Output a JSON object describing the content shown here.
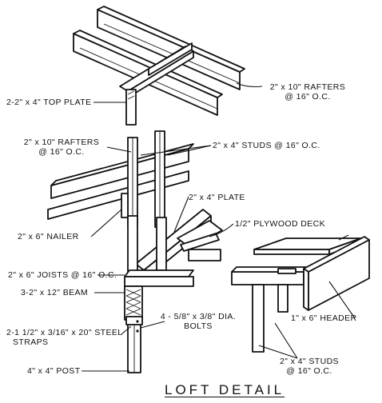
{
  "title": "LOFT DETAIL",
  "labels": {
    "top_plate": "2-2\" x 4\" TOP PLATE",
    "rafters_right_1": "2\" x 10\" RAFTERS",
    "rafters_right_2": "@ 16\" O.C.",
    "rafters_left_1": "2\" x 10\" RAFTERS",
    "rafters_left_2": "@ 16\" O.C.",
    "studs_upper": "2\" x 4\" STUDS @ 16\" O.C.",
    "plate": "2\" x 4\" PLATE",
    "plywood_deck": "1/2\" PLYWOOD DECK",
    "nailer": "2\" x 6\" NAILER",
    "joists": "2\" x 6\" JOISTS @ 16\" O.C.",
    "beam": "3-2\" x 12\" BEAM",
    "bolts_1": "4 - 5/8\" x 3/8\" DIA.",
    "bolts_2": "BOLTS",
    "straps_1": "2-1 1/2\" x 3/16\" x 20\" STEEL",
    "straps_2": "STRAPS",
    "header": "1\" x 6\" HEADER",
    "post": "4\" x 4\" POST",
    "studs_lower_1": "2\" x 4\" STUDS",
    "studs_lower_2": "@ 16\" O.C."
  }
}
